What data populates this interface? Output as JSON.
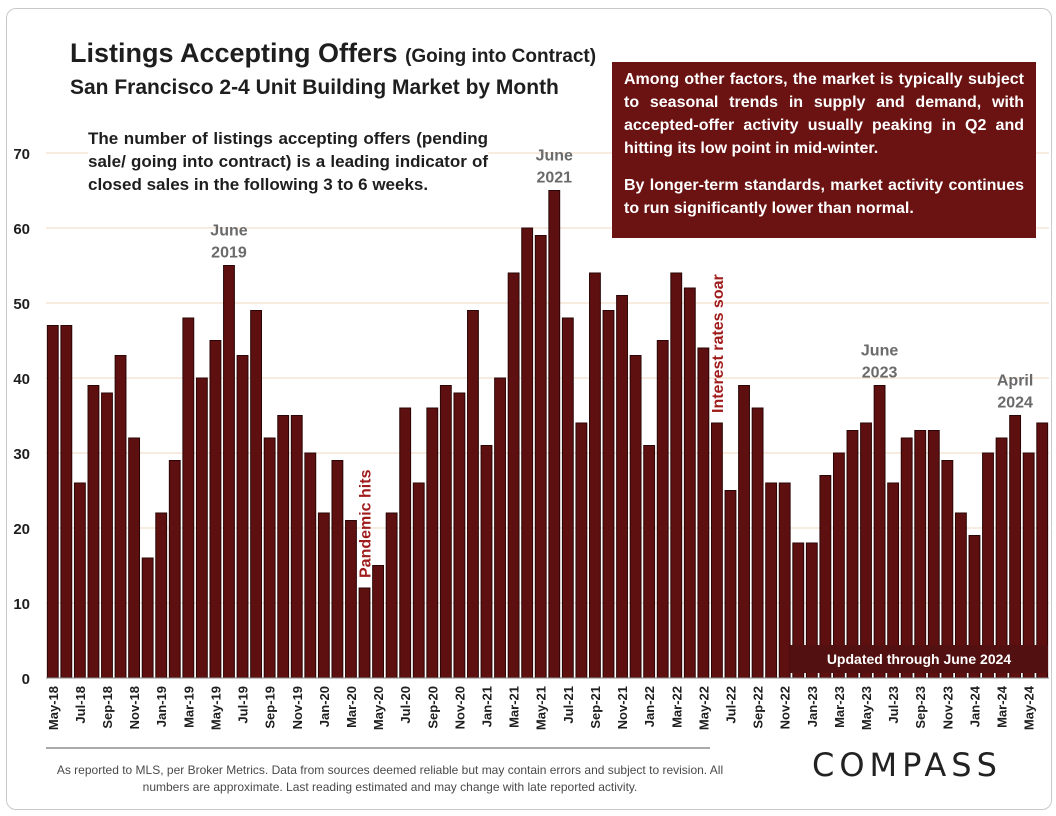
{
  "title": {
    "main": "Listings Accepting Offers",
    "suffix": "(Going into Contract)",
    "subtitle": "San Francisco 2-4 Unit Building Market by Month"
  },
  "note": "The number of listings accepting offers (pending sale/ going into contract) is a leading indicator of closed sales in the following 3 to 6 weeks.",
  "info_box": {
    "para1": "Among other factors, the market is typically subject to seasonal trends in supply and demand, with accepted-offer activity usually peaking in Q2 and hitting its low point in mid-winter.",
    "para2": "By longer-term standards, market activity continues to run significantly lower than normal."
  },
  "updated": "Updated through June 2024",
  "footer": "As reported to MLS, per Broker Metrics. Data from sources deemed reliable but may contain errors and subject to revision. All numbers are approximate.  Last reading estimated and may change with late reported activity.",
  "logo": "COMPASS",
  "colors": {
    "bar": "#5e1010",
    "bar_edge": "#2a0606",
    "grid": "#f2d9c2",
    "annotation_red": "#a01c1c",
    "annotation_gray": "#6a6a6a",
    "info_bg": "#6b1212"
  },
  "chart_data": {
    "type": "bar",
    "title": "Listings Accepting Offers (Going into Contract)",
    "subtitle": "San Francisco 2-4 Unit Building Market by Month",
    "xlabel": "",
    "ylabel": "",
    "ylim": [
      0,
      70
    ],
    "yticks": [
      0,
      10,
      20,
      30,
      40,
      50,
      60,
      70
    ],
    "grid": true,
    "categories": [
      "May-18",
      "Jun-18",
      "Jul-18",
      "Aug-18",
      "Sep-18",
      "Oct-18",
      "Nov-18",
      "Dec-18",
      "Jan-19",
      "Feb-19",
      "Mar-19",
      "Apr-19",
      "May-19",
      "Jun-19",
      "Jul-19",
      "Aug-19",
      "Sep-19",
      "Oct-19",
      "Nov-19",
      "Dec-19",
      "Jan-20",
      "Feb-20",
      "Mar-20",
      "Apr-20",
      "May-20",
      "Jun-20",
      "Jul-20",
      "Aug-20",
      "Sep-20",
      "Oct-20",
      "Nov-20",
      "Dec-20",
      "Jan-21",
      "Feb-21",
      "Mar-21",
      "Apr-21",
      "May-21",
      "Jun-21",
      "Jul-21",
      "Aug-21",
      "Sep-21",
      "Oct-21",
      "Nov-21",
      "Dec-21",
      "Jan-22",
      "Feb-22",
      "Mar-22",
      "Apr-22",
      "May-22",
      "Jun-22",
      "Jul-22",
      "Aug-22",
      "Sep-22",
      "Oct-22",
      "Nov-22",
      "Dec-22",
      "Jan-23",
      "Feb-23",
      "Mar-23",
      "Apr-23",
      "May-23",
      "Jun-23",
      "Jul-23",
      "Aug-23",
      "Sep-23",
      "Oct-23",
      "Nov-23",
      "Dec-23",
      "Jan-24",
      "Feb-24",
      "Mar-24",
      "Apr-24",
      "May-24",
      "Jun-24"
    ],
    "values": [
      47,
      47,
      26,
      39,
      38,
      43,
      32,
      16,
      22,
      29,
      48,
      40,
      45,
      55,
      43,
      49,
      32,
      35,
      35,
      30,
      22,
      29,
      21,
      12,
      15,
      22,
      36,
      26,
      36,
      39,
      38,
      49,
      31,
      40,
      54,
      60,
      59,
      65,
      48,
      34,
      54,
      49,
      51,
      43,
      31,
      45,
      54,
      52,
      44,
      34,
      25,
      39,
      36,
      26,
      26,
      18,
      18,
      27,
      30,
      33,
      34,
      39,
      26,
      32,
      33,
      33,
      29,
      22,
      19,
      30,
      32,
      35,
      30,
      34
    ],
    "tick_labels": [
      "May-18",
      "Jul-18",
      "Sep-18",
      "Nov-18",
      "Jan-19",
      "Mar-19",
      "May-19",
      "Jul-19",
      "Sep-19",
      "Nov-19",
      "Jan-20",
      "Mar-20",
      "May-20",
      "Jul-20",
      "Sep-20",
      "Nov-20",
      "Jan-21",
      "Mar-21",
      "May-21",
      "Jul-21",
      "Sep-21",
      "Nov-21",
      "Jan-22",
      "Mar-22",
      "May-22",
      "Jul-22",
      "Sep-22",
      "Nov-22",
      "Jan-23",
      "Mar-23",
      "May-23",
      "Jul-23",
      "Sep-23",
      "Nov-23",
      "Jan-24",
      "Mar-24",
      "May-24"
    ],
    "annotations": [
      {
        "label": "June",
        "label2": "2019",
        "category": "Jun-19",
        "style": "gray"
      },
      {
        "label": "June",
        "label2": "2021",
        "category": "Jun-21",
        "style": "gray"
      },
      {
        "label": "June",
        "label2": "2023",
        "category": "Jun-23",
        "style": "gray"
      },
      {
        "label": "April",
        "label2": "2024",
        "category": "Apr-24",
        "style": "gray"
      },
      {
        "label": "Pandemic hits",
        "category": "Apr-20",
        "style": "red-vertical"
      },
      {
        "label": "Interest rates soar",
        "category": "Jun-22",
        "style": "red-vertical"
      }
    ]
  }
}
